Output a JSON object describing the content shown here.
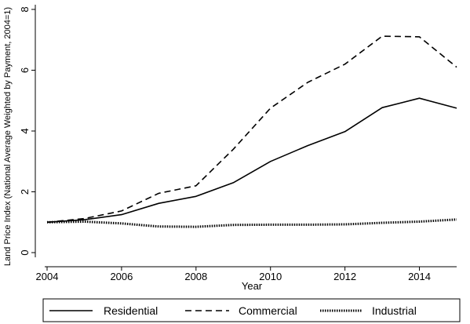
{
  "chart_data": {
    "type": "line",
    "xlabel": "Year",
    "ylabel": "Land Price Index (National Average Weighted by Payment, 2004=1)",
    "xlim": [
      2004,
      2015
    ],
    "ylim": [
      0,
      8
    ],
    "x_ticks": [
      2004,
      2006,
      2008,
      2010,
      2012,
      2014
    ],
    "y_ticks": [
      0,
      2,
      4,
      6,
      8
    ],
    "grid": false,
    "legend_position": "bottom",
    "x": [
      2004,
      2005,
      2006,
      2007,
      2008,
      2009,
      2010,
      2011,
      2012,
      2013,
      2014,
      2015
    ],
    "series": [
      {
        "name": "Residential",
        "style": "solid",
        "color": "#000000",
        "values": [
          1.0,
          1.08,
          1.25,
          1.62,
          1.85,
          2.3,
          3.0,
          3.52,
          3.98,
          4.77,
          5.08,
          4.75
        ]
      },
      {
        "name": "Commercial",
        "style": "dashed",
        "color": "#000000",
        "values": [
          1.0,
          1.12,
          1.37,
          1.95,
          2.2,
          3.4,
          4.75,
          5.6,
          6.2,
          7.12,
          7.1,
          6.1
        ]
      },
      {
        "name": "Industrial",
        "style": "dotted",
        "color": "#000000",
        "values": [
          1.0,
          1.02,
          0.96,
          0.86,
          0.85,
          0.91,
          0.92,
          0.92,
          0.93,
          0.98,
          1.02,
          1.09
        ]
      }
    ]
  }
}
